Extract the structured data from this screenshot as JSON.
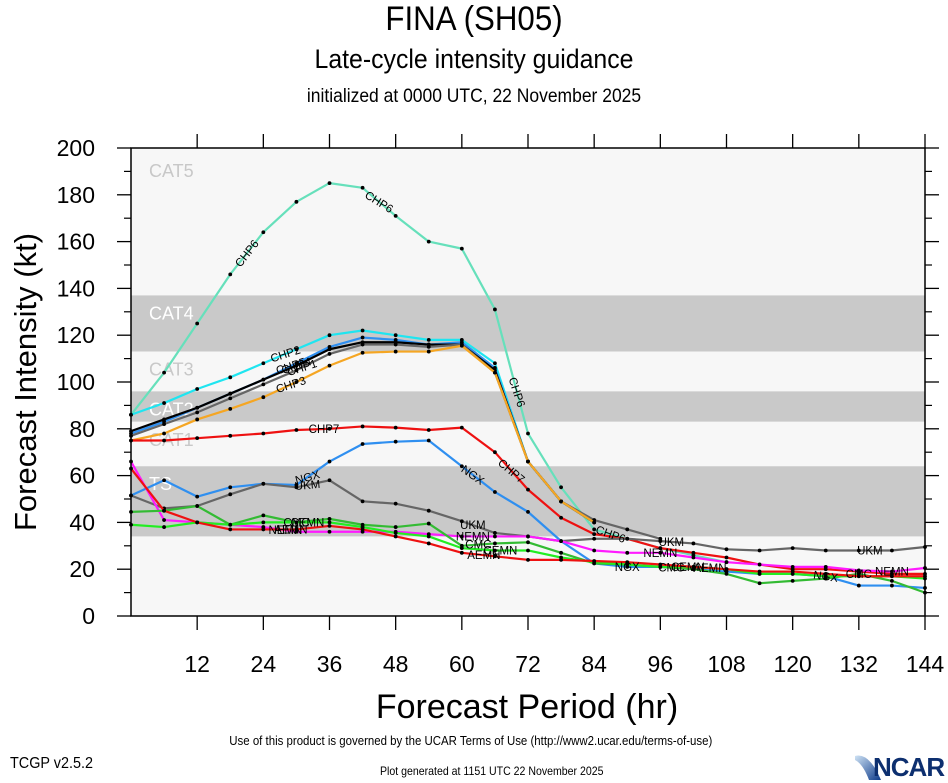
{
  "header": {
    "title": "FINA (SH05)",
    "subtitle": "Late-cycle intensity guidance",
    "init": "initialized at 0000 UTC, 22 November 2025"
  },
  "footer": {
    "terms": "Use of this product is governed by the UCAR Terms of Use (http://www2.ucar.edu/terms-of-use)",
    "version": "TCGP v2.5.2",
    "generated": "Plot generated at 1151 UTC   22 November 2025",
    "logo": "NCAR"
  },
  "chart_data": {
    "type": "line",
    "title": "FINA (SH05) Late-cycle intensity guidance",
    "xlabel": "Forecast Period (hr)",
    "ylabel": "Forecast Intensity (kt)",
    "xlim": [
      0,
      144
    ],
    "ylim": [
      0,
      200
    ],
    "xticks": [
      12,
      24,
      36,
      48,
      60,
      72,
      84,
      96,
      108,
      120,
      132,
      144
    ],
    "yticks": [
      0,
      20,
      40,
      60,
      80,
      100,
      120,
      140,
      160,
      180,
      200
    ],
    "bands": [
      {
        "label": "CAT5",
        "from": 137,
        "to": 200,
        "color": "#f7f7f7",
        "label_color": "#c8c8c8"
      },
      {
        "label": "CAT4",
        "from": 113,
        "to": 137,
        "color": "#c9c9c9",
        "label_color": "#ffffff"
      },
      {
        "label": "CAT3",
        "from": 96,
        "to": 113,
        "color": "#f7f7f7",
        "label_color": "#c8c8c8"
      },
      {
        "label": "CAT2",
        "from": 83,
        "to": 96,
        "color": "#c9c9c9",
        "label_color": "#ffffff"
      },
      {
        "label": "CAT1",
        "from": 64,
        "to": 83,
        "color": "#f7f7f7",
        "label_color": "#c8c8c8"
      },
      {
        "label": "TS",
        "from": 34,
        "to": 64,
        "color": "#c9c9c9",
        "label_color": "#ffffff"
      },
      {
        "label": "",
        "from": 0,
        "to": 34,
        "color": "#f7f7f7",
        "label_color": "#c8c8c8"
      }
    ],
    "series": [
      {
        "name": "CHP6",
        "color": "#66e0bb",
        "x": [
          0,
          6,
          12,
          18,
          24,
          30,
          36,
          42,
          48,
          54,
          60,
          66,
          72,
          78,
          84,
          90,
          96,
          102,
          108
        ],
        "y": [
          86,
          104,
          125,
          146,
          164,
          177,
          185,
          183,
          171,
          160,
          157,
          131,
          78,
          55,
          37,
          33,
          29,
          26,
          23
        ],
        "labels": [
          {
            "x": 21,
            "angle": -52
          },
          {
            "x": 45,
            "angle": 32
          },
          {
            "x": 70,
            "angle": 72
          },
          {
            "x": 87,
            "angle": 20
          }
        ]
      },
      {
        "name": "CHP2",
        "color": "#1fe5f0",
        "x": [
          0,
          6,
          12,
          18,
          24,
          30,
          36,
          42,
          48,
          54,
          60,
          66,
          72,
          78,
          84
        ],
        "y": [
          86,
          91,
          97,
          102,
          108,
          114,
          120,
          122,
          120,
          118,
          118,
          108,
          66,
          49,
          40
        ],
        "labels": [
          {
            "x": 28,
            "angle": -18
          }
        ]
      },
      {
        "name": "CHP5",
        "color": "#2f8ff0",
        "x": [
          0,
          6,
          12,
          18,
          24,
          30,
          36,
          42,
          48,
          54,
          60,
          66,
          72,
          78,
          84
        ],
        "y": [
          78,
          83,
          89,
          95,
          101,
          108,
          115,
          119,
          118,
          116,
          117,
          106,
          66,
          49,
          40
        ],
        "labels": [
          {
            "x": 29,
            "angle": -18
          }
        ]
      },
      {
        "name": "CHP4",
        "color": "#000000",
        "x": [
          0,
          6,
          12,
          18,
          24,
          30,
          36,
          42,
          48,
          54,
          60,
          66,
          72,
          78,
          84
        ],
        "y": [
          79,
          84,
          89,
          95,
          101,
          107,
          114,
          117,
          117,
          116,
          116,
          105,
          66,
          49,
          40
        ],
        "labels": [
          {
            "x": 30,
            "angle": -18
          }
        ]
      },
      {
        "name": "CHP1",
        "color": "#666666",
        "x": [
          0,
          6,
          12,
          18,
          24,
          30,
          36,
          42,
          48,
          54,
          60,
          66,
          72,
          78,
          84,
          90,
          96
        ],
        "y": [
          77,
          82,
          87,
          93,
          99,
          105,
          112,
          116,
          116,
          115,
          116,
          104,
          66,
          49,
          41,
          37,
          33
        ],
        "labels": [
          {
            "x": 31,
            "angle": -18
          }
        ]
      },
      {
        "name": "CHP3",
        "color": "#f5a623",
        "x": [
          0,
          6,
          12,
          18,
          24,
          30,
          36,
          42,
          48,
          54,
          60,
          66,
          72,
          78,
          84
        ],
        "y": [
          75,
          78,
          84,
          88.5,
          93.5,
          100,
          107,
          112.5,
          113,
          113,
          115.5,
          104,
          66,
          49,
          40
        ],
        "labels": [
          {
            "x": 29,
            "angle": -18
          }
        ]
      },
      {
        "name": "CHP7",
        "color": "#ee1111",
        "x": [
          0,
          6,
          12,
          18,
          24,
          30,
          36,
          42,
          48,
          54,
          60,
          66,
          72,
          78,
          84,
          90,
          96,
          102,
          108,
          114,
          120,
          126,
          132,
          138,
          144
        ],
        "y": [
          75,
          75,
          76,
          77,
          78,
          79.5,
          80,
          81,
          80.5,
          79.5,
          80.5,
          70,
          54,
          42,
          35,
          33,
          29,
          27,
          25,
          22,
          20,
          20,
          19,
          18,
          18
        ],
        "labels": [
          {
            "x": 35,
            "angle": 0
          },
          {
            "x": 69,
            "angle": 40
          }
        ]
      },
      {
        "name": "NGX",
        "color": "#2f8ff0",
        "x": [
          0,
          6,
          12,
          18,
          24,
          30,
          36,
          42,
          48,
          54,
          60,
          66,
          72,
          78,
          84,
          90,
          96,
          102,
          108,
          114,
          120,
          126,
          132,
          138,
          144
        ],
        "y": [
          51.5,
          58,
          51,
          55,
          56.5,
          56,
          66,
          73.5,
          74.5,
          75,
          64,
          53,
          44.5,
          32,
          22.5,
          21,
          21,
          20,
          19,
          18,
          18,
          17,
          13,
          13,
          12
        ],
        "labels": [
          {
            "x": 32,
            "angle": -15
          },
          {
            "x": 62,
            "angle": 35
          },
          {
            "x": 90,
            "angle": 0
          },
          {
            "x": 126,
            "angle": 8
          }
        ]
      },
      {
        "name": "UKM",
        "color": "#666666",
        "x": [
          0,
          6,
          12,
          18,
          24,
          30,
          36,
          42,
          48,
          54,
          60,
          66,
          72,
          78,
          84,
          90,
          96,
          102,
          108,
          114,
          120,
          126,
          132,
          138,
          144
        ],
        "y": [
          51.5,
          46,
          47,
          52,
          56.5,
          55,
          58,
          49,
          48,
          45,
          40.5,
          35.5,
          34,
          32,
          33,
          33,
          32,
          31,
          28.5,
          28,
          29,
          28,
          28,
          28,
          29.5
        ],
        "labels": [
          {
            "x": 32,
            "angle": -5
          },
          {
            "x": 62,
            "angle": 0
          },
          {
            "x": 98,
            "angle": 0
          },
          {
            "x": 134,
            "angle": 0
          }
        ]
      },
      {
        "name": "NEMN",
        "color": "#ff1aff",
        "x": [
          0,
          6,
          12,
          18,
          24,
          30,
          36,
          42,
          48,
          54,
          60,
          66,
          72,
          78,
          84,
          90,
          96,
          102,
          108,
          114,
          120,
          126,
          132,
          138,
          144
        ],
        "y": [
          66,
          41,
          40,
          39,
          38,
          36,
          36,
          36,
          36,
          35,
          34,
          34,
          34,
          32,
          28,
          27,
          27,
          25,
          23,
          22,
          21,
          21,
          19.5,
          19,
          20.5
        ],
        "labels": [
          {
            "x": 28,
            "angle": 0
          },
          {
            "x": 62,
            "angle": 0
          },
          {
            "x": 96,
            "angle": 0
          },
          {
            "x": 138,
            "angle": 0
          }
        ]
      },
      {
        "name": "CMC",
        "color": "#33bb33",
        "x": [
          0,
          6,
          12,
          18,
          24,
          30,
          36,
          42,
          48,
          54,
          60,
          66,
          72,
          78,
          84,
          90,
          96,
          102,
          108,
          114,
          120,
          126,
          132,
          138,
          144
        ],
        "y": [
          44.5,
          45,
          47,
          39,
          43,
          40,
          41.5,
          39,
          38,
          39.5,
          30,
          31,
          31.5,
          27,
          22.5,
          22,
          21,
          20,
          18,
          14,
          15,
          16,
          18,
          15,
          10
        ],
        "labels": [
          {
            "x": 30,
            "angle": 0
          },
          {
            "x": 63,
            "angle": 0
          },
          {
            "x": 98,
            "angle": 0
          },
          {
            "x": 132,
            "angle": 0
          }
        ]
      },
      {
        "name": "CEMN",
        "color": "#22ee22",
        "x": [
          0,
          6,
          12,
          18,
          24,
          30,
          36,
          42,
          48,
          54,
          60,
          66,
          72,
          78,
          84,
          90,
          96,
          102,
          108,
          114,
          120,
          126,
          132,
          138,
          144
        ],
        "y": [
          39,
          38,
          40,
          39,
          40,
          40,
          40,
          38,
          35.5,
          34,
          29,
          28,
          28,
          25,
          23,
          22,
          21,
          21,
          20,
          18,
          18,
          17,
          17,
          17,
          16
        ],
        "labels": [
          {
            "x": 32,
            "angle": 0
          },
          {
            "x": 67,
            "angle": 0
          },
          {
            "x": 101,
            "angle": 0
          }
        ]
      },
      {
        "name": "AEMN",
        "color": "#ee1111",
        "x": [
          0,
          6,
          12,
          18,
          24,
          30,
          36,
          42,
          48,
          54,
          60,
          66,
          72,
          78,
          84,
          90,
          96,
          102,
          108,
          114,
          120,
          126,
          132,
          138,
          144
        ],
        "y": [
          63,
          45,
          40,
          37,
          37,
          37,
          38.5,
          37,
          34,
          31,
          27,
          25.5,
          24,
          24,
          23.5,
          23,
          22,
          21,
          20,
          19,
          19,
          18,
          17,
          17,
          17
        ],
        "labels": [
          {
            "x": 29,
            "angle": 0
          },
          {
            "x": 64,
            "angle": 0
          },
          {
            "x": 105,
            "angle": 0
          }
        ]
      }
    ]
  }
}
